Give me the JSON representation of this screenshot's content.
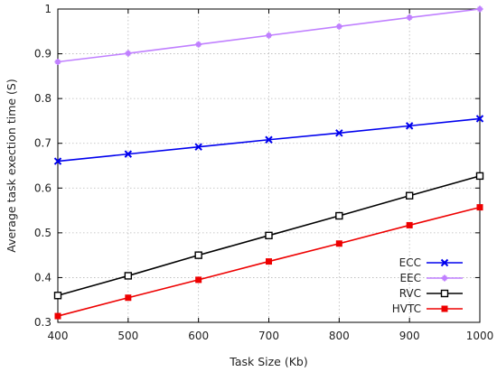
{
  "chart_data": {
    "type": "line",
    "title": "",
    "xlabel": "Task Size (Kb)",
    "ylabel": "Average task exection time (S)",
    "xlim": [
      400,
      1000
    ],
    "ylim": [
      0.3,
      1.0
    ],
    "x": [
      400,
      500,
      600,
      700,
      800,
      900,
      1000
    ],
    "x_ticks": [
      "400",
      "500",
      "600",
      "700",
      "800",
      "900",
      "1000"
    ],
    "y_ticks": [
      "0.3",
      "0.4",
      "0.5",
      "0.6",
      "0.7",
      "0.8",
      "0.9",
      "1"
    ],
    "grid": true,
    "legend_position": "bottom-right",
    "series": [
      {
        "name": "ECC",
        "values": [
          0.66,
          0.676,
          0.692,
          0.708,
          0.723,
          0.739,
          0.755
        ],
        "color": "#0000ee",
        "marker": "x"
      },
      {
        "name": "EEC",
        "values": [
          0.882,
          0.901,
          0.921,
          0.941,
          0.961,
          0.981,
          1.0
        ],
        "color": "#c080ff",
        "marker": "plus"
      },
      {
        "name": "RVC",
        "values": [
          0.36,
          0.404,
          0.45,
          0.494,
          0.538,
          0.583,
          0.627
        ],
        "color": "#000000",
        "marker": "square-open"
      },
      {
        "name": "HVTC",
        "values": [
          0.314,
          0.355,
          0.395,
          0.436,
          0.476,
          0.517,
          0.557
        ],
        "color": "#ee0000",
        "marker": "square-filled"
      }
    ]
  }
}
